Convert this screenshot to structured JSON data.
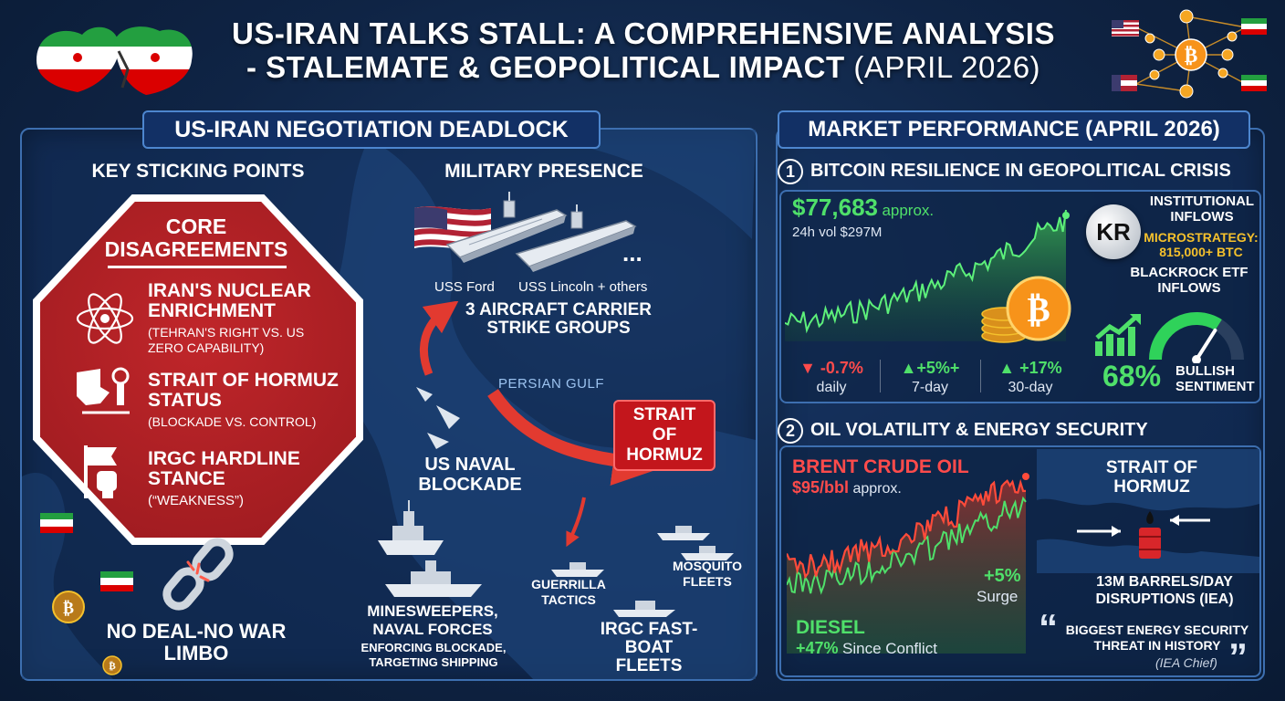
{
  "header": {
    "title_line1": "US-IRAN TALKS STALL: A COMPREHENSIVE ANALYSIS",
    "title_line2_bold": "- STALEMATE & GEOPOLITICAL IMPACT",
    "title_line2_light": "(APRIL 2026)"
  },
  "left_panel": {
    "title": "US-IRAN NEGOTIATION DEADLOCK",
    "sticking_heading": "KEY STICKING POINTS",
    "core_title": "CORE DISAGREEMENTS",
    "points": [
      {
        "title": "IRAN'S NUCLEAR ENRICHMENT",
        "detail": "(TEHRAN'S RIGHT vs. US ZERO CAPABILITY)",
        "icon": "atom-icon"
      },
      {
        "title": "STRAIT OF HORMUZ STATUS",
        "detail": "(BLOCKADE vs. CONTROL)",
        "icon": "map-valve-icon"
      },
      {
        "title": "IRGC HARDLINE STANCE",
        "detail": "(“WEAKNESS”)",
        "icon": "fist-flag-icon"
      }
    ],
    "limbo_caption": "NO DEAL-NO WAR LIMBO",
    "military_heading": "MILITARY PRESENCE",
    "carrier_label_ford": "USS Ford",
    "carrier_label_lincoln": "USS Lincoln + others",
    "carrier_more": "...",
    "carrier_groups": "3 AIRCRAFT CARRIER STRIKE GROUPS",
    "persian_gulf": "PERSIAN GULF",
    "strait_label": "STRAIT OF HORMUZ",
    "naval_blockade": "US NAVAL BLOCKADE",
    "minesweepers": "MINESWEEPERS, NAVAL FORCES",
    "minesweepers_sub": "ENFORCING BLOCKADE, TARGETING SHIPPING",
    "guerrilla": "GUERRILLA TACTICS",
    "mosquito": "MOSQUITO FLEETS",
    "irgc_fleets": "IRGC FAST-BOAT FLEETS"
  },
  "right_panel": {
    "title": "MARKET PERFORMANCE (APRIL 2026)",
    "section1_num": "1",
    "section1_title": "BITCOIN RESILIENCE IN GEOPOLITICAL CRISIS",
    "btc_price": "$77,683",
    "btc_approx": "approx.",
    "btc_volume": "24h vol $297M",
    "btc_changes": [
      {
        "value": "-0.7%",
        "label": "daily",
        "direction": "down"
      },
      {
        "value": "+5%+",
        "label": "7-day",
        "direction": "up"
      },
      {
        "value": "+17%",
        "label": "30-day",
        "direction": "up"
      }
    ],
    "kr_logo": "KR",
    "institutional": "INSTITUTIONAL INFLOWS",
    "microstrategy": "MICROSTRATEGY: 815,000+ BTC",
    "blackrock": "BLACKROCK ETF INFLOWS",
    "sentiment_value": "68%",
    "sentiment_label": "BULLISH SENTIMENT",
    "sentiment_fraction": 0.68,
    "section2_num": "2",
    "section2_title": "OIL VOLATILITY & ENERGY SECURITY",
    "brent_label": "BRENT CRUDE OIL",
    "brent_price": "$95/bbl",
    "brent_approx": "approx.",
    "surge_value": "+5%",
    "surge_label": "Surge",
    "diesel_label": "DIESEL",
    "diesel_value": "+47%",
    "diesel_since": "Since Conflict",
    "strait_heading": "STRAIT OF HORMUZ",
    "barrels": "13M BARRELS/DAY DISRUPTIONS (IEA)",
    "quote": "BIGGEST ENERGY SECURITY THREAT IN HISTORY",
    "quote_source": "(IEA Chief)"
  },
  "colors": {
    "red": "#c3161c",
    "green": "#4fe06a",
    "gold": "#f5c12c",
    "navy": "#0f2445"
  }
}
